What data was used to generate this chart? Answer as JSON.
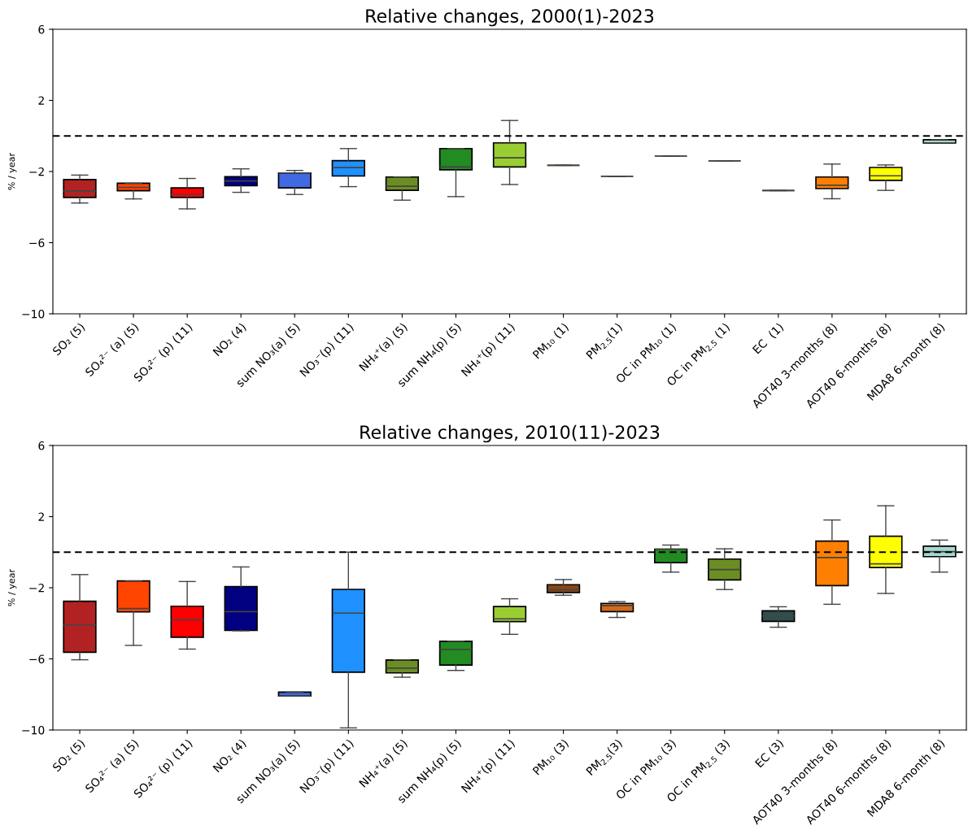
{
  "chart_data": [
    {
      "type": "box",
      "title": "Relative changes, 2000(1)-2023",
      "ylabel": "% / year",
      "ylim": [
        -10,
        6
      ],
      "yticks": [
        {
          "value": -10,
          "label": "−10"
        },
        {
          "value": -6,
          "label": "−6"
        },
        {
          "value": -2,
          "label": "−2"
        },
        2,
        6
      ],
      "categories": [
        "SO₂ (5)",
        "SO₄²⁻ (a) (5)",
        "SO₄²⁻ (p) (11)",
        "NO₂ (4)",
        "sum NO₃(a) (5)",
        "NO₃⁻(p) (11)",
        "NH₄⁺(a) (5)",
        "sum NH₄(p) (5)",
        "NH₄⁺(p) (11)",
        "PM₁₀ (1)",
        "PM$_{2.5}$(1)",
        "OC in PM₁₀ (1)",
        "OC in PM$_{2.5}$ (1)",
        "EC  (1)",
        "AOT40 3-months (8)",
        "AOT40 6-months (8)",
        "MDA8 6-month (8)"
      ],
      "colors": [
        "#b22222",
        "#ff4500",
        "#ff0000",
        "#000080",
        "#4169e1",
        "#1e90ff",
        "#6b8e23",
        "#228b22",
        "#9acd32",
        "#8b4513",
        "#d2691e",
        "#228b22",
        "#6b8e23",
        "#2f4f4f",
        "#ff8000",
        "#ffff00",
        "#a7d8cf"
      ],
      "boxes": [
        {
          "low": -3.77,
          "q1": -3.46,
          "median": -3.09,
          "q3": -2.45,
          "high": -2.2
        },
        {
          "low": -3.54,
          "q1": -3.08,
          "median": -2.89,
          "q3": -2.66,
          "high": -2.66
        },
        {
          "low": -4.1,
          "q1": -3.46,
          "median": -3.29,
          "q3": -2.92,
          "high": -2.39
        },
        {
          "low": -3.17,
          "q1": -2.8,
          "median": -2.53,
          "q3": -2.29,
          "high": -1.85
        },
        {
          "low": -3.29,
          "q1": -2.92,
          "median": -2.08,
          "q3": -2.08,
          "high": -1.94
        },
        {
          "low": -2.85,
          "q1": -2.25,
          "median": -1.78,
          "q3": -1.39,
          "high": -0.71
        },
        {
          "low": -3.61,
          "q1": -3.06,
          "median": -2.83,
          "q3": -2.31,
          "high": -2.31
        },
        {
          "low": -3.41,
          "q1": -1.9,
          "median": -1.74,
          "q3": -0.71,
          "high": -0.71
        },
        {
          "low": -2.73,
          "q1": -1.74,
          "median": -1.23,
          "q3": -0.39,
          "high": 0.87
        },
        {
          "low": -1.65,
          "q1": -1.65,
          "median": -1.65,
          "q3": -1.65,
          "high": -1.65
        },
        {
          "low": -2.27,
          "q1": -2.27,
          "median": -2.27,
          "q3": -2.27,
          "high": -2.27
        },
        {
          "low": -1.13,
          "q1": -1.13,
          "median": -1.13,
          "q3": -1.13,
          "high": -1.13
        },
        {
          "low": -1.4,
          "q1": -1.4,
          "median": -1.4,
          "q3": -1.4,
          "high": -1.4
        },
        {
          "low": -3.07,
          "q1": -3.07,
          "median": -3.07,
          "q3": -3.07,
          "high": -3.07
        },
        {
          "low": -3.53,
          "q1": -2.96,
          "median": -2.77,
          "q3": -2.31,
          "high": -1.58
        },
        {
          "low": -3.06,
          "q1": -2.5,
          "median": -2.24,
          "q3": -1.77,
          "high": -1.63
        },
        {
          "low": -0.4,
          "q1": -0.4,
          "median": -0.4,
          "q3": -0.21,
          "high": -0.21
        }
      ],
      "ref_lines": [
        {
          "axis": "y",
          "value": 0,
          "line_style": "dashed",
          "color": "#000000"
        }
      ]
    },
    {
      "type": "box",
      "title": "Relative changes, 2010(11)-2023",
      "ylabel": "% / year",
      "ylim": [
        -10,
        6
      ],
      "yticks": [
        {
          "value": -10,
          "label": "−10"
        },
        {
          "value": -6,
          "label": "−6"
        },
        {
          "value": -2,
          "label": "−2"
        },
        2,
        6
      ],
      "categories": [
        "SO₂ (5)",
        "SO₄²⁻ (a) (5)",
        "SO₄²⁻ (p) (11)",
        "NO₂ (4)",
        "sum NO₃(a) (5)",
        "NO₃⁻(p) (11)",
        "NH₄⁺(a) (5)",
        "sum NH₄(p) (5)",
        "NH₄⁺(p) (11)",
        "PM₁₀ (3)",
        "PM$_{2.5}$(3)",
        "OC in PM₁₀ (3)",
        "OC in PM$_{2.5}$ (3)",
        "EC (3)",
        "AOT40 3-months (8)",
        "AOT40 6-months (8)",
        "MDA8 6-month (8)"
      ],
      "colors": [
        "#b22222",
        "#ff4500",
        "#ff0000",
        "#000080",
        "#4169e1",
        "#1e90ff",
        "#6b8e23",
        "#228b22",
        "#9acd32",
        "#8b4513",
        "#d2691e",
        "#228b22",
        "#6b8e23",
        "#2f4f4f",
        "#ff8000",
        "#ffff00",
        "#a7d8cf"
      ],
      "boxes": [
        {
          "low": -6.05,
          "q1": -5.63,
          "median": -4.09,
          "q3": -2.76,
          "high": -1.26
        },
        {
          "low": -5.24,
          "q1": -3.36,
          "median": -3.17,
          "q3": -1.62,
          "high": -1.62
        },
        {
          "low": -5.45,
          "q1": -4.78,
          "median": -3.8,
          "q3": -3.04,
          "high": -1.65
        },
        {
          "low": -4.42,
          "q1": -4.4,
          "median": -3.34,
          "q3": -1.93,
          "high": -0.83
        },
        {
          "low": -8.09,
          "q1": -8.09,
          "median": -8.09,
          "q3": -7.87,
          "high": -7.87
        },
        {
          "low": -9.88,
          "q1": -6.75,
          "median": -3.43,
          "q3": -2.09,
          "high": 0.0
        },
        {
          "low": -7.03,
          "q1": -6.79,
          "median": -6.52,
          "q3": -6.06,
          "high": -6.06
        },
        {
          "low": -6.65,
          "q1": -6.35,
          "median": -5.47,
          "q3": -5.01,
          "high": -5.01
        },
        {
          "low": -4.62,
          "q1": -3.9,
          "median": -3.75,
          "q3": -3.06,
          "high": -2.62
        },
        {
          "low": -2.42,
          "q1": -2.27,
          "median": -2.12,
          "q3": -1.83,
          "high": -1.54
        },
        {
          "low": -3.67,
          "q1": -3.34,
          "median": -3.0,
          "q3": -2.88,
          "high": -2.78
        },
        {
          "low": -1.12,
          "q1": -0.59,
          "median": 0.17,
          "q3": 0.17,
          "high": 0.4
        },
        {
          "low": -2.1,
          "q1": -1.56,
          "median": -0.98,
          "q3": -0.39,
          "high": 0.19
        },
        {
          "low": -4.22,
          "q1": -3.89,
          "median": -3.59,
          "q3": -3.3,
          "high": -3.07
        },
        {
          "low": -2.93,
          "q1": -1.88,
          "median": -0.3,
          "q3": 0.62,
          "high": 1.81
        },
        {
          "low": -2.32,
          "q1": -0.86,
          "median": -0.66,
          "q3": 0.9,
          "high": 2.61
        },
        {
          "low": -1.12,
          "q1": -0.25,
          "median": 0.03,
          "q3": 0.34,
          "high": 0.68
        }
      ],
      "ref_lines": [
        {
          "axis": "y",
          "value": 0,
          "line_style": "dashed",
          "color": "#000000"
        }
      ]
    }
  ]
}
